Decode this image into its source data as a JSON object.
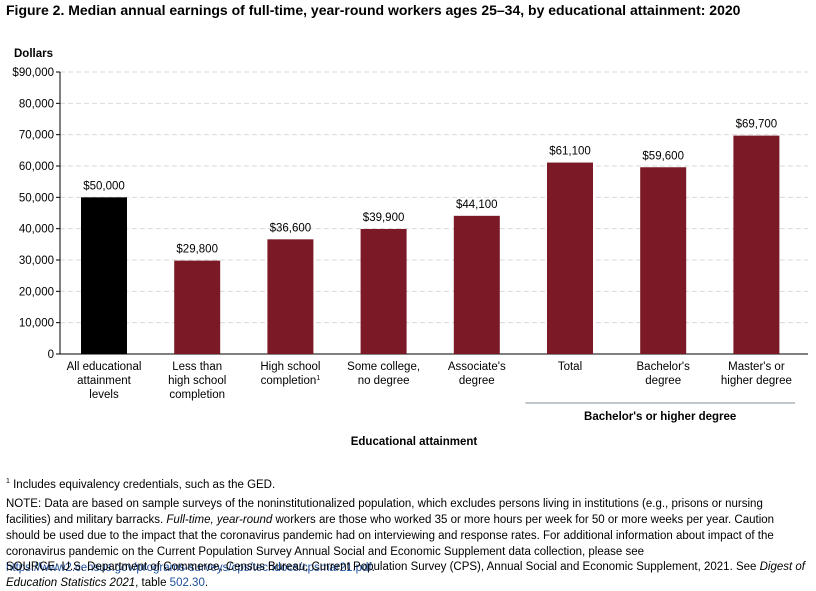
{
  "title": "Figure 2. Median annual earnings of full-time, year-round workers ages 25–34, by educational attainment: 2020",
  "chart_data": {
    "type": "bar",
    "ylabel": "Dollars",
    "xlabel": "Educational attainment",
    "ylim": [
      0,
      90000
    ],
    "yticks": [
      {
        "value": 0,
        "label": "0"
      },
      {
        "value": 10000,
        "label": "10,000"
      },
      {
        "value": 20000,
        "label": "20,000"
      },
      {
        "value": 30000,
        "label": "30,000"
      },
      {
        "value": 40000,
        "label": "40,000"
      },
      {
        "value": 50000,
        "label": "50,000"
      },
      {
        "value": 60000,
        "label": "60,000"
      },
      {
        "value": 70000,
        "label": "70,000"
      },
      {
        "value": 80000,
        "label": "80,000"
      },
      {
        "value": 90000,
        "label": "$90,000"
      }
    ],
    "grid": true,
    "categories": [
      {
        "lines": [
          "All educational",
          "attainment",
          "levels"
        ],
        "value": 50000,
        "label": "$50,000",
        "color": "#000000"
      },
      {
        "lines": [
          "Less than",
          "high school",
          "completion"
        ],
        "value": 29800,
        "label": "$29,800",
        "color": "#7b1a26"
      },
      {
        "lines": [
          "High school",
          "completion"
        ],
        "sup": "1",
        "value": 36600,
        "label": "$36,600",
        "color": "#7b1a26"
      },
      {
        "lines": [
          "Some college,",
          "no degree"
        ],
        "value": 39900,
        "label": "$39,900",
        "color": "#7b1a26"
      },
      {
        "lines": [
          "Associate's",
          "degree"
        ],
        "value": 44100,
        "label": "$44,100",
        "color": "#7b1a26"
      },
      {
        "lines": [
          "Total"
        ],
        "value": 61100,
        "label": "$61,100",
        "color": "#7b1a26"
      },
      {
        "lines": [
          "Bachelor's",
          "degree"
        ],
        "value": 59600,
        "label": "$59,600",
        "color": "#7b1a26"
      },
      {
        "lines": [
          "Master's or",
          "higher degree"
        ],
        "value": 69700,
        "label": "$69,700",
        "color": "#7b1a26"
      }
    ],
    "group_label": "Bachelor's or higher degree",
    "group_range": [
      5,
      7
    ]
  },
  "footnote_mark": "1",
  "footnote": " Includes equivalency credentials, such as the GED.",
  "note_prefix": "NOTE: Data are based on sample surveys of the noninstitutionalized population, which excludes persons living in institutions (e.g., prisons or nursing facilities) and military barracks. ",
  "note_italic": "Full-time, year-round",
  "note_mid": " workers are those who worked 35 or more hours per week for 50 or more weeks per year. Caution should be used due to the impact that the coronavirus pandemic had on interviewing and response rates. For additional information about impact of the coronavirus pandemic on the Current Population Survey Annual Social and Economic Supplement data collection, please see ",
  "note_link": "https://www2.census.gov/programs-surveys/cps/techdocs/cpsmar21.pdf",
  "note_end": ".",
  "source_prefix": "SOURCE: U.S. Department of Commerce, Census Bureau, Current Population Survey (CPS), Annual Social and Economic Supplement, 2021. See ",
  "source_italic": "Digest of Education Statistics 2021",
  "source_mid": ", table ",
  "source_link": "502.30",
  "source_end": "."
}
